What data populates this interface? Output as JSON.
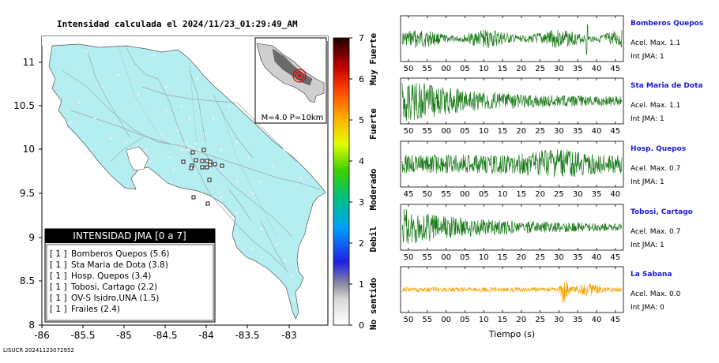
{
  "map": {
    "title": "Intensidad calculada el 2024/11/23_01:29:49_AM",
    "x_ticks": [
      "-86",
      "-85.5",
      "-85",
      "-84.5",
      "-84",
      "-83.5",
      "-83"
    ],
    "y_ticks": [
      "11",
      "10.5",
      "10",
      "9.5",
      "9",
      "8.5",
      "8"
    ],
    "inset_label": "M=4.0 P=10km",
    "land_color": "#b4eef0",
    "road_color": "#9aa6a8"
  },
  "legend": {
    "title": "INTENSIDAD JMA [0 a 7]",
    "items": [
      {
        "level": "[ 1 ]",
        "label": "Bomberos Quepos (5.6)"
      },
      {
        "level": "[ 1 ]",
        "label": "Sta Maria de Dota (3.8)"
      },
      {
        "level": "[ 1 ]",
        "label": "Hosp. Quepos (3.4)"
      },
      {
        "level": "[ 1 ]",
        "label": "Tobosi, Cartago (2.2)"
      },
      {
        "level": "[ 1 ]",
        "label": "OV-S Isidro,UNA (1.5)"
      },
      {
        "level": "[ 1 ]",
        "label": "Frailes (2.4)"
      }
    ]
  },
  "colorbar": {
    "ticks": [
      "0",
      "1",
      "2",
      "3",
      "4",
      "5",
      "6",
      "7"
    ],
    "categories": [
      "No sentido",
      "Debil",
      "Moderado",
      "Fuerte",
      "Muy Fuerte"
    ]
  },
  "seismograms": [
    {
      "name": "Bomberos Quepos",
      "accel": "Acel. Max. 1.1",
      "int": "Int JMA: 1",
      "color": "#1a7a1a",
      "ticks": [
        "50",
        "55",
        "00",
        "05",
        "10",
        "15",
        "20",
        "25",
        "30",
        "35",
        "40",
        "45"
      ]
    },
    {
      "name": "Sta Maria de Dota",
      "accel": "Acel. Max. 1.1",
      "int": "Int JMA: 1",
      "color": "#1a7a1a",
      "ticks": [
        "50",
        "55",
        "00",
        "05",
        "10",
        "15",
        "20",
        "25",
        "30",
        "35",
        "40",
        "45"
      ]
    },
    {
      "name": "Hosp. Quepos",
      "accel": "Acel. Max. 0.7",
      "int": "Int JMA: 1",
      "color": "#1a7a1a",
      "ticks": [
        "45",
        "50",
        "55",
        "00",
        "05",
        "10",
        "15",
        "20",
        "25",
        "30",
        "35",
        "40"
      ]
    },
    {
      "name": "Tobosi, Cartago",
      "accel": "Acel. Max. 0.7",
      "int": "Int JMA: 1",
      "color": "#1a7a1a",
      "ticks": [
        "50",
        "55",
        "00",
        "05",
        "10",
        "15",
        "20",
        "25",
        "30",
        "35",
        "40",
        "45"
      ]
    },
    {
      "name": "La Sabana",
      "accel": "Acel. Max. 0.0",
      "int": "Int JMA: 0",
      "color": "#f5a300",
      "ticks": [
        "50",
        "55",
        "00",
        "05",
        "10",
        "15",
        "20",
        "25",
        "30",
        "35",
        "40",
        "45"
      ]
    }
  ],
  "time_axis_label": "Tiempo (s)",
  "footer": "LISUCR 20241123072952"
}
